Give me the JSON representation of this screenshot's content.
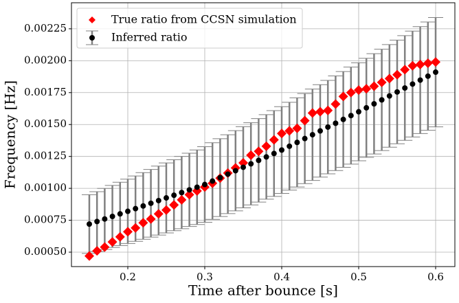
{
  "chart_data": {
    "type": "scatter",
    "x_label": "Time after bounce [s]",
    "y_label": "Frequency [Hz]",
    "xlim": [
      0.1268,
      0.625
    ],
    "ylim": [
      0.000387,
      0.002454
    ],
    "xticks": [
      0.2,
      0.3,
      0.4,
      0.5,
      0.6
    ],
    "yticks": [
      {
        "value": 0.0005,
        "label": "0.00050"
      },
      0.00075,
      {
        "value": 0.001,
        "label": "0.00100"
      },
      0.00125,
      {
        "value": 0.0015,
        "label": "0.00150"
      },
      0.00175,
      {
        "value": 0.002,
        "label": "0.00200"
      },
      0.00225
    ],
    "grid": true,
    "legend": "upper left",
    "x": [
      0.15,
      0.16,
      0.17,
      0.18,
      0.19,
      0.2,
      0.21,
      0.22,
      0.23,
      0.24,
      0.25,
      0.26,
      0.27,
      0.28,
      0.29,
      0.3,
      0.31,
      0.32,
      0.33,
      0.34,
      0.35,
      0.36,
      0.37,
      0.38,
      0.39,
      0.4,
      0.41,
      0.42,
      0.43,
      0.44,
      0.45,
      0.46,
      0.47,
      0.48,
      0.49,
      0.5,
      0.51,
      0.52,
      0.53,
      0.54,
      0.55,
      0.56,
      0.57,
      0.58,
      0.59,
      0.6
    ],
    "series": [
      {
        "name": "True ratio from CCSN simulation",
        "color": "#ff0000",
        "marker": "diamond",
        "values": [
          0.00047,
          0.00051,
          0.00054,
          0.00058,
          0.00062,
          0.00066,
          0.00069,
          0.00073,
          0.00076,
          0.0008,
          0.00083,
          0.00087,
          0.00091,
          0.00095,
          0.00098,
          0.00101,
          0.00104,
          0.00108,
          0.00112,
          0.00116,
          0.0012,
          0.00126,
          0.00129,
          0.00133,
          0.00138,
          0.00143,
          0.00145,
          0.00147,
          0.00153,
          0.00159,
          0.0016,
          0.00161,
          0.00166,
          0.00172,
          0.00175,
          0.00177,
          0.00178,
          0.0018,
          0.00183,
          0.00186,
          0.00189,
          0.00193,
          0.00196,
          0.00197,
          0.00198,
          0.00199
        ]
      },
      {
        "name": "Inferred ratio",
        "color": "#000000",
        "error_color": "#808080",
        "marker": "circle",
        "values": [
          0.00072,
          0.00074,
          0.00076,
          0.00078,
          0.0008,
          0.00082,
          0.000841,
          0.000862,
          0.000883,
          0.000904,
          0.000925,
          0.000946,
          0.000967,
          0.000988,
          0.001009,
          0.00103,
          0.001057,
          0.001084,
          0.001111,
          0.001138,
          0.001165,
          0.001192,
          0.001219,
          0.001246,
          0.001273,
          0.0013,
          0.00133,
          0.00136,
          0.00139,
          0.00142,
          0.00145,
          0.00148,
          0.00151,
          0.00154,
          0.00157,
          0.0016,
          0.001631,
          0.001662,
          0.001693,
          0.001724,
          0.001755,
          0.001786,
          0.001817,
          0.001848,
          0.001879,
          0.00191
        ],
        "errors": [
          0.00023,
          0.000234,
          0.000239,
          0.000243,
          0.000248,
          0.000252,
          0.000256,
          0.000261,
          0.000265,
          0.00027,
          0.000274,
          0.000278,
          0.000283,
          0.000287,
          0.000292,
          0.000296,
          0.0003,
          0.000305,
          0.000309,
          0.000314,
          0.000318,
          0.000322,
          0.000327,
          0.000331,
          0.000336,
          0.00034,
          0.000344,
          0.000349,
          0.000353,
          0.000358,
          0.000362,
          0.000366,
          0.000371,
          0.000375,
          0.00038,
          0.000384,
          0.000388,
          0.000393,
          0.000397,
          0.000402,
          0.000406,
          0.00041,
          0.000415,
          0.000419,
          0.000424,
          0.000428
        ]
      }
    ]
  }
}
